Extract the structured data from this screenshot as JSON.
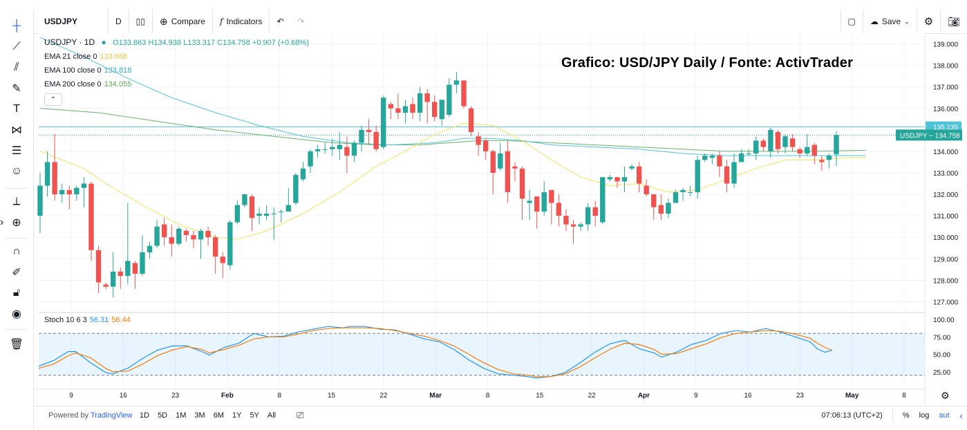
{
  "toolbar": {
    "symbol": "USDJPY",
    "interval": "D",
    "compare_label": "Compare",
    "indicators_label": "Indicators",
    "save_label": "Save"
  },
  "legend": {
    "title": "USDJPY · 1D",
    "ohlc": "O133.863 H134.938 L133.317 C134.758 +0.907 (+0.68%)",
    "ema21_label": "EMA 21 close 0",
    "ema21_value": "133.668",
    "ema100_label": "EMA 100 close 0",
    "ema100_value": "133.818",
    "ema200_label": "EMA 200 close 0",
    "ema200_value": "134.055",
    "stoch_label": "Stoch 10 6 3",
    "stoch_k": "56.31",
    "stoch_d": "56.44"
  },
  "watermark": "Grafico: USD/JPY Daily / Fonte: ActivTrader",
  "bottom": {
    "powered": "Powered by",
    "brand": "TradingView",
    "ranges": [
      "1D",
      "5D",
      "1M",
      "3M",
      "6M",
      "1Y",
      "5Y",
      "All"
    ],
    "clock": "07:06:13 (UTC+2)",
    "pct": "%",
    "log": "log",
    "auto": "auto"
  },
  "colors": {
    "up": "#26a69a",
    "down": "#ef5350",
    "ema21": "#f5e35a",
    "ema100": "#4fc3d9",
    "ema200": "#66b26a",
    "stoch_k": "#2196f3",
    "stoch_d": "#f57c00"
  },
  "chart_data": {
    "type": "candlestick",
    "title": "USDJPY · 1D",
    "price_axis": {
      "ticks": [
        "139.000",
        "138.000",
        "137.000",
        "136.000",
        "135.000",
        "134.000",
        "133.000",
        "132.000",
        "131.000",
        "130.000",
        "129.000",
        "128.000",
        "127.000"
      ],
      "range": [
        126.5,
        139.5
      ]
    },
    "price_labels": [
      {
        "text": "135.135",
        "value": 135.135
      },
      {
        "text": "USDJPY − 134.758",
        "value": 134.758
      }
    ],
    "horizontal_line": 135.135,
    "x_axis_labels": [
      "9",
      "16",
      "23",
      "Feb",
      "8",
      "15",
      "22",
      "Mar",
      "8",
      "15",
      "22",
      "Apr",
      "9",
      "16",
      "23",
      "May",
      "8"
    ],
    "candles": [
      [
        131.0,
        132.4,
        130.2,
        133.0
      ],
      [
        132.4,
        133.5,
        131.9,
        134.0
      ],
      [
        133.5,
        132.0,
        131.7,
        134.8
      ],
      [
        132.0,
        132.2,
        131.6,
        132.5
      ],
      [
        132.2,
        132.0,
        131.3,
        132.4
      ],
      [
        132.0,
        132.3,
        131.7,
        132.4
      ],
      [
        132.3,
        132.5,
        131.4,
        132.8
      ],
      [
        132.5,
        129.4,
        128.9,
        132.6
      ],
      [
        129.4,
        127.9,
        127.4,
        129.6
      ],
      [
        127.8,
        127.7,
        127.6,
        127.9
      ],
      [
        127.7,
        128.4,
        127.2,
        129.3
      ],
      [
        128.4,
        128.2,
        127.6,
        128.6
      ],
      [
        128.2,
        128.9,
        127.8,
        131.6
      ],
      [
        128.8,
        128.3,
        127.6,
        128.9
      ],
      [
        128.3,
        129.3,
        128.2,
        130.1
      ],
      [
        129.3,
        129.6,
        129.0,
        129.8
      ],
      [
        129.6,
        130.5,
        129.5,
        130.8
      ],
      [
        130.6,
        130.0,
        129.6,
        130.9
      ],
      [
        130.0,
        129.7,
        129.1,
        130.6
      ],
      [
        129.7,
        130.4,
        129.6,
        130.5
      ],
      [
        130.3,
        130.1,
        129.8,
        130.4
      ],
      [
        130.1,
        129.9,
        129.5,
        130.3
      ],
      [
        129.9,
        130.3,
        129.0,
        130.4
      ],
      [
        130.3,
        130.0,
        129.6,
        130.5
      ],
      [
        130.0,
        129.1,
        128.3,
        130.1
      ],
      [
        129.1,
        128.8,
        128.1,
        129.3
      ],
      [
        128.7,
        130.7,
        128.5,
        130.8
      ],
      [
        130.7,
        131.5,
        130.6,
        131.7
      ],
      [
        131.5,
        132.0,
        131.4,
        132.0
      ],
      [
        131.9,
        130.9,
        130.3,
        132.0
      ],
      [
        131.0,
        131.1,
        130.6,
        131.4
      ],
      [
        131.0,
        131.1,
        130.8,
        131.5
      ],
      [
        131.1,
        131.1,
        129.9,
        131.4
      ],
      [
        131.2,
        131.2,
        130.7,
        131.3
      ],
      [
        131.2,
        131.5,
        131.2,
        132.3
      ],
      [
        131.6,
        132.9,
        131.5,
        133.0
      ],
      [
        132.7,
        133.2,
        132.6,
        133.5
      ],
      [
        133.3,
        134.0,
        133.0,
        134.1
      ],
      [
        134.0,
        134.1,
        133.7,
        134.3
      ],
      [
        134.1,
        134.1,
        133.9,
        134.4
      ],
      [
        134.1,
        134.2,
        133.8,
        134.6
      ],
      [
        134.1,
        134.3,
        133.6,
        134.9
      ],
      [
        134.2,
        133.8,
        133.0,
        134.7
      ],
      [
        133.8,
        134.4,
        133.5,
        134.5
      ],
      [
        134.4,
        135.0,
        134.0,
        135.2
      ],
      [
        135.0,
        134.9,
        134.3,
        135.5
      ],
      [
        134.9,
        134.1,
        134.0,
        135.2
      ],
      [
        134.2,
        136.5,
        134.1,
        136.6
      ],
      [
        136.2,
        136.0,
        135.5,
        136.3
      ],
      [
        136.0,
        135.8,
        135.5,
        136.7
      ],
      [
        135.8,
        136.1,
        135.3,
        136.4
      ],
      [
        136.2,
        135.8,
        135.5,
        136.5
      ],
      [
        135.8,
        136.7,
        135.4,
        137.0
      ],
      [
        136.7,
        136.3,
        135.3,
        136.9
      ],
      [
        136.3,
        135.6,
        135.4,
        136.6
      ],
      [
        135.5,
        136.4,
        135.2,
        136.4
      ],
      [
        135.7,
        137.1,
        135.6,
        137.4
      ],
      [
        137.1,
        137.3,
        136.7,
        137.7
      ],
      [
        137.3,
        136.1,
        136.0,
        137.3
      ],
      [
        136.0,
        134.9,
        134.7,
        136.1
      ],
      [
        134.7,
        134.3,
        133.8,
        134.9
      ],
      [
        134.5,
        134.0,
        133.6,
        134.6
      ],
      [
        134.0,
        133.0,
        132.0,
        134.1
      ],
      [
        133.2,
        133.9,
        133.1,
        134.4
      ],
      [
        134.0,
        132.1,
        131.6,
        134.5
      ],
      [
        133.3,
        133.2,
        132.6,
        133.5
      ],
      [
        133.2,
        131.8,
        130.8,
        133.3
      ],
      [
        131.6,
        131.7,
        130.8,
        132.2
      ],
      [
        131.9,
        131.2,
        130.4,
        131.9
      ],
      [
        131.2,
        132.1,
        131.0,
        132.6
      ],
      [
        132.2,
        131.6,
        130.6,
        132.2
      ],
      [
        131.6,
        131.0,
        130.5,
        132.0
      ],
      [
        131.0,
        130.6,
        130.3,
        131.3
      ],
      [
        130.6,
        130.5,
        129.7,
        130.8
      ],
      [
        130.5,
        130.6,
        130.3,
        130.7
      ],
      [
        130.6,
        131.4,
        130.3,
        131.6
      ],
      [
        131.4,
        131.0,
        130.5,
        131.7
      ],
      [
        130.7,
        132.8,
        130.6,
        132.8
      ],
      [
        132.7,
        132.8,
        132.6,
        132.9
      ],
      [
        132.8,
        132.6,
        132.3,
        132.8
      ],
      [
        132.6,
        132.8,
        132.1,
        133.3
      ],
      [
        133.2,
        133.3,
        133.1,
        133.4
      ],
      [
        133.3,
        132.5,
        132.1,
        133.5
      ],
      [
        132.4,
        132.0,
        131.9,
        132.7
      ],
      [
        132.0,
        131.4,
        130.8,
        132.0
      ],
      [
        131.5,
        131.1,
        130.8,
        132.0
      ],
      [
        131.1,
        131.6,
        130.9,
        131.8
      ],
      [
        131.6,
        132.1,
        131.6,
        132.2
      ],
      [
        132.1,
        132.2,
        131.7,
        132.3
      ],
      [
        132.1,
        132.1,
        131.9,
        132.4
      ],
      [
        132.1,
        133.6,
        131.8,
        133.8
      ],
      [
        133.6,
        133.8,
        133.5,
        133.9
      ],
      [
        133.7,
        133.8,
        133.4,
        133.9
      ],
      [
        133.8,
        133.3,
        132.8,
        134.0
      ],
      [
        133.3,
        132.5,
        132.1,
        133.6
      ],
      [
        132.5,
        133.5,
        132.3,
        133.9
      ],
      [
        133.5,
        133.9,
        133.5,
        134.1
      ],
      [
        133.9,
        133.9,
        133.8,
        134.1
      ],
      [
        133.9,
        134.5,
        133.6,
        134.7
      ],
      [
        134.5,
        134.2,
        134.0,
        134.6
      ],
      [
        134.0,
        135.0,
        133.7,
        135.1
      ],
      [
        134.9,
        134.1,
        133.9,
        135.0
      ],
      [
        134.2,
        134.7,
        133.9,
        134.8
      ],
      [
        134.6,
        134.2,
        134.0,
        134.8
      ],
      [
        134.1,
        133.9,
        133.7,
        134.2
      ],
      [
        133.9,
        134.2,
        133.8,
        134.8
      ],
      [
        134.3,
        133.8,
        133.4,
        134.4
      ],
      [
        133.6,
        133.5,
        133.1,
        133.8
      ],
      [
        133.6,
        133.8,
        133.2,
        133.9
      ],
      [
        133.86,
        134.76,
        133.32,
        134.94
      ]
    ],
    "ema21": [
      [
        0,
        134.0
      ],
      [
        6,
        133.2
      ],
      [
        9,
        132.5
      ],
      [
        14,
        131.5
      ],
      [
        19,
        130.6
      ],
      [
        24,
        130.0
      ],
      [
        27,
        129.9
      ],
      [
        31,
        130.3
      ],
      [
        36,
        131.1
      ],
      [
        41,
        132.1
      ],
      [
        46,
        133.3
      ],
      [
        50,
        134.0
      ],
      [
        54,
        134.8
      ],
      [
        58,
        135.3
      ],
      [
        62,
        135.2
      ],
      [
        66,
        134.5
      ],
      [
        70,
        133.6
      ],
      [
        74,
        132.8
      ],
      [
        78,
        132.4
      ],
      [
        82,
        132.5
      ],
      [
        86,
        132.1
      ],
      [
        90,
        132.2
      ],
      [
        94,
        132.7
      ],
      [
        98,
        133.2
      ],
      [
        102,
        133.6
      ],
      [
        106,
        133.6
      ],
      [
        110,
        133.7
      ],
      [
        113,
        133.7
      ]
    ],
    "ema100": [
      [
        0,
        139.3
      ],
      [
        6,
        138.4
      ],
      [
        12,
        137.4
      ],
      [
        18,
        136.5
      ],
      [
        24,
        135.8
      ],
      [
        30,
        135.2
      ],
      [
        36,
        134.7
      ],
      [
        42,
        134.4
      ],
      [
        48,
        134.3
      ],
      [
        54,
        134.4
      ],
      [
        58,
        134.6
      ],
      [
        62,
        134.6
      ],
      [
        66,
        134.5
      ],
      [
        70,
        134.3
      ],
      [
        76,
        134.2
      ],
      [
        82,
        134.1
      ],
      [
        88,
        133.9
      ],
      [
        94,
        133.8
      ],
      [
        100,
        133.8
      ],
      [
        106,
        133.8
      ],
      [
        113,
        133.8
      ]
    ],
    "ema200": [
      [
        0,
        136.0
      ],
      [
        8,
        135.8
      ],
      [
        16,
        135.4
      ],
      [
        24,
        135.0
      ],
      [
        32,
        134.7
      ],
      [
        40,
        134.4
      ],
      [
        46,
        134.3
      ],
      [
        52,
        134.3
      ],
      [
        56,
        134.4
      ],
      [
        60,
        134.5
      ],
      [
        64,
        134.5
      ],
      [
        70,
        134.4
      ],
      [
        76,
        134.3
      ],
      [
        82,
        134.2
      ],
      [
        88,
        134.1
      ],
      [
        94,
        134.0
      ],
      [
        100,
        134.0
      ],
      [
        106,
        134.0
      ],
      [
        113,
        134.05
      ]
    ],
    "stoch": {
      "ticks": [
        "100.00",
        "75.00",
        "50.00",
        "25.00"
      ],
      "range": [
        0,
        110
      ],
      "band": [
        80,
        20
      ],
      "k": [
        [
          0,
          33
        ],
        [
          4,
          41
        ],
        [
          8,
          54
        ],
        [
          10,
          54
        ],
        [
          14,
          38
        ],
        [
          18,
          24
        ],
        [
          20,
          22
        ],
        [
          24,
          30
        ],
        [
          28,
          44
        ],
        [
          32,
          56
        ],
        [
          36,
          62
        ],
        [
          40,
          62
        ],
        [
          44,
          54
        ],
        [
          46,
          49
        ],
        [
          50,
          60
        ],
        [
          54,
          66
        ],
        [
          58,
          80
        ],
        [
          62,
          75
        ],
        [
          66,
          76
        ],
        [
          70,
          82
        ],
        [
          74,
          86
        ],
        [
          78,
          90
        ],
        [
          82,
          88
        ],
        [
          84,
          90
        ],
        [
          88,
          90
        ],
        [
          92,
          86
        ],
        [
          96,
          85
        ],
        [
          100,
          79
        ],
        [
          104,
          72
        ],
        [
          108,
          68
        ],
        [
          112,
          57
        ],
        [
          116,
          42
        ],
        [
          120,
          30
        ],
        [
          124,
          22
        ],
        [
          128,
          20
        ],
        [
          132,
          18
        ],
        [
          134,
          16
        ],
        [
          138,
          18
        ],
        [
          142,
          24
        ],
        [
          146,
          38
        ],
        [
          150,
          53
        ],
        [
          154,
          65
        ],
        [
          158,
          70
        ],
        [
          162,
          58
        ],
        [
          166,
          52
        ],
        [
          168,
          46
        ],
        [
          172,
          53
        ],
        [
          176,
          64
        ],
        [
          180,
          70
        ],
        [
          184,
          80
        ],
        [
          188,
          84
        ],
        [
          192,
          82
        ],
        [
          196,
          87
        ],
        [
          200,
          82
        ],
        [
          204,
          75
        ],
        [
          208,
          68
        ],
        [
          210,
          58
        ],
        [
          212,
          53
        ],
        [
          214,
          56
        ]
      ],
      "d": [
        [
          0,
          30
        ],
        [
          4,
          36
        ],
        [
          8,
          48
        ],
        [
          10,
          52
        ],
        [
          14,
          45
        ],
        [
          18,
          30
        ],
        [
          20,
          25
        ],
        [
          24,
          26
        ],
        [
          28,
          36
        ],
        [
          32,
          48
        ],
        [
          36,
          56
        ],
        [
          40,
          61
        ],
        [
          44,
          57
        ],
        [
          46,
          52
        ],
        [
          50,
          57
        ],
        [
          54,
          63
        ],
        [
          58,
          72
        ],
        [
          62,
          75
        ],
        [
          66,
          75
        ],
        [
          70,
          79
        ],
        [
          74,
          84
        ],
        [
          78,
          87
        ],
        [
          82,
          88
        ],
        [
          84,
          88
        ],
        [
          88,
          88
        ],
        [
          92,
          87
        ],
        [
          96,
          84
        ],
        [
          100,
          80
        ],
        [
          104,
          76
        ],
        [
          108,
          70
        ],
        [
          112,
          62
        ],
        [
          116,
          50
        ],
        [
          120,
          38
        ],
        [
          124,
          28
        ],
        [
          128,
          22
        ],
        [
          132,
          20
        ],
        [
          134,
          18
        ],
        [
          138,
          18
        ],
        [
          142,
          22
        ],
        [
          146,
          32
        ],
        [
          150,
          45
        ],
        [
          154,
          57
        ],
        [
          158,
          66
        ],
        [
          162,
          64
        ],
        [
          166,
          57
        ],
        [
          168,
          50
        ],
        [
          172,
          51
        ],
        [
          176,
          58
        ],
        [
          180,
          65
        ],
        [
          184,
          74
        ],
        [
          188,
          80
        ],
        [
          192,
          82
        ],
        [
          196,
          84
        ],
        [
          200,
          83
        ],
        [
          204,
          79
        ],
        [
          208,
          73
        ],
        [
          210,
          66
        ],
        [
          212,
          60
        ],
        [
          214,
          56
        ]
      ]
    }
  }
}
